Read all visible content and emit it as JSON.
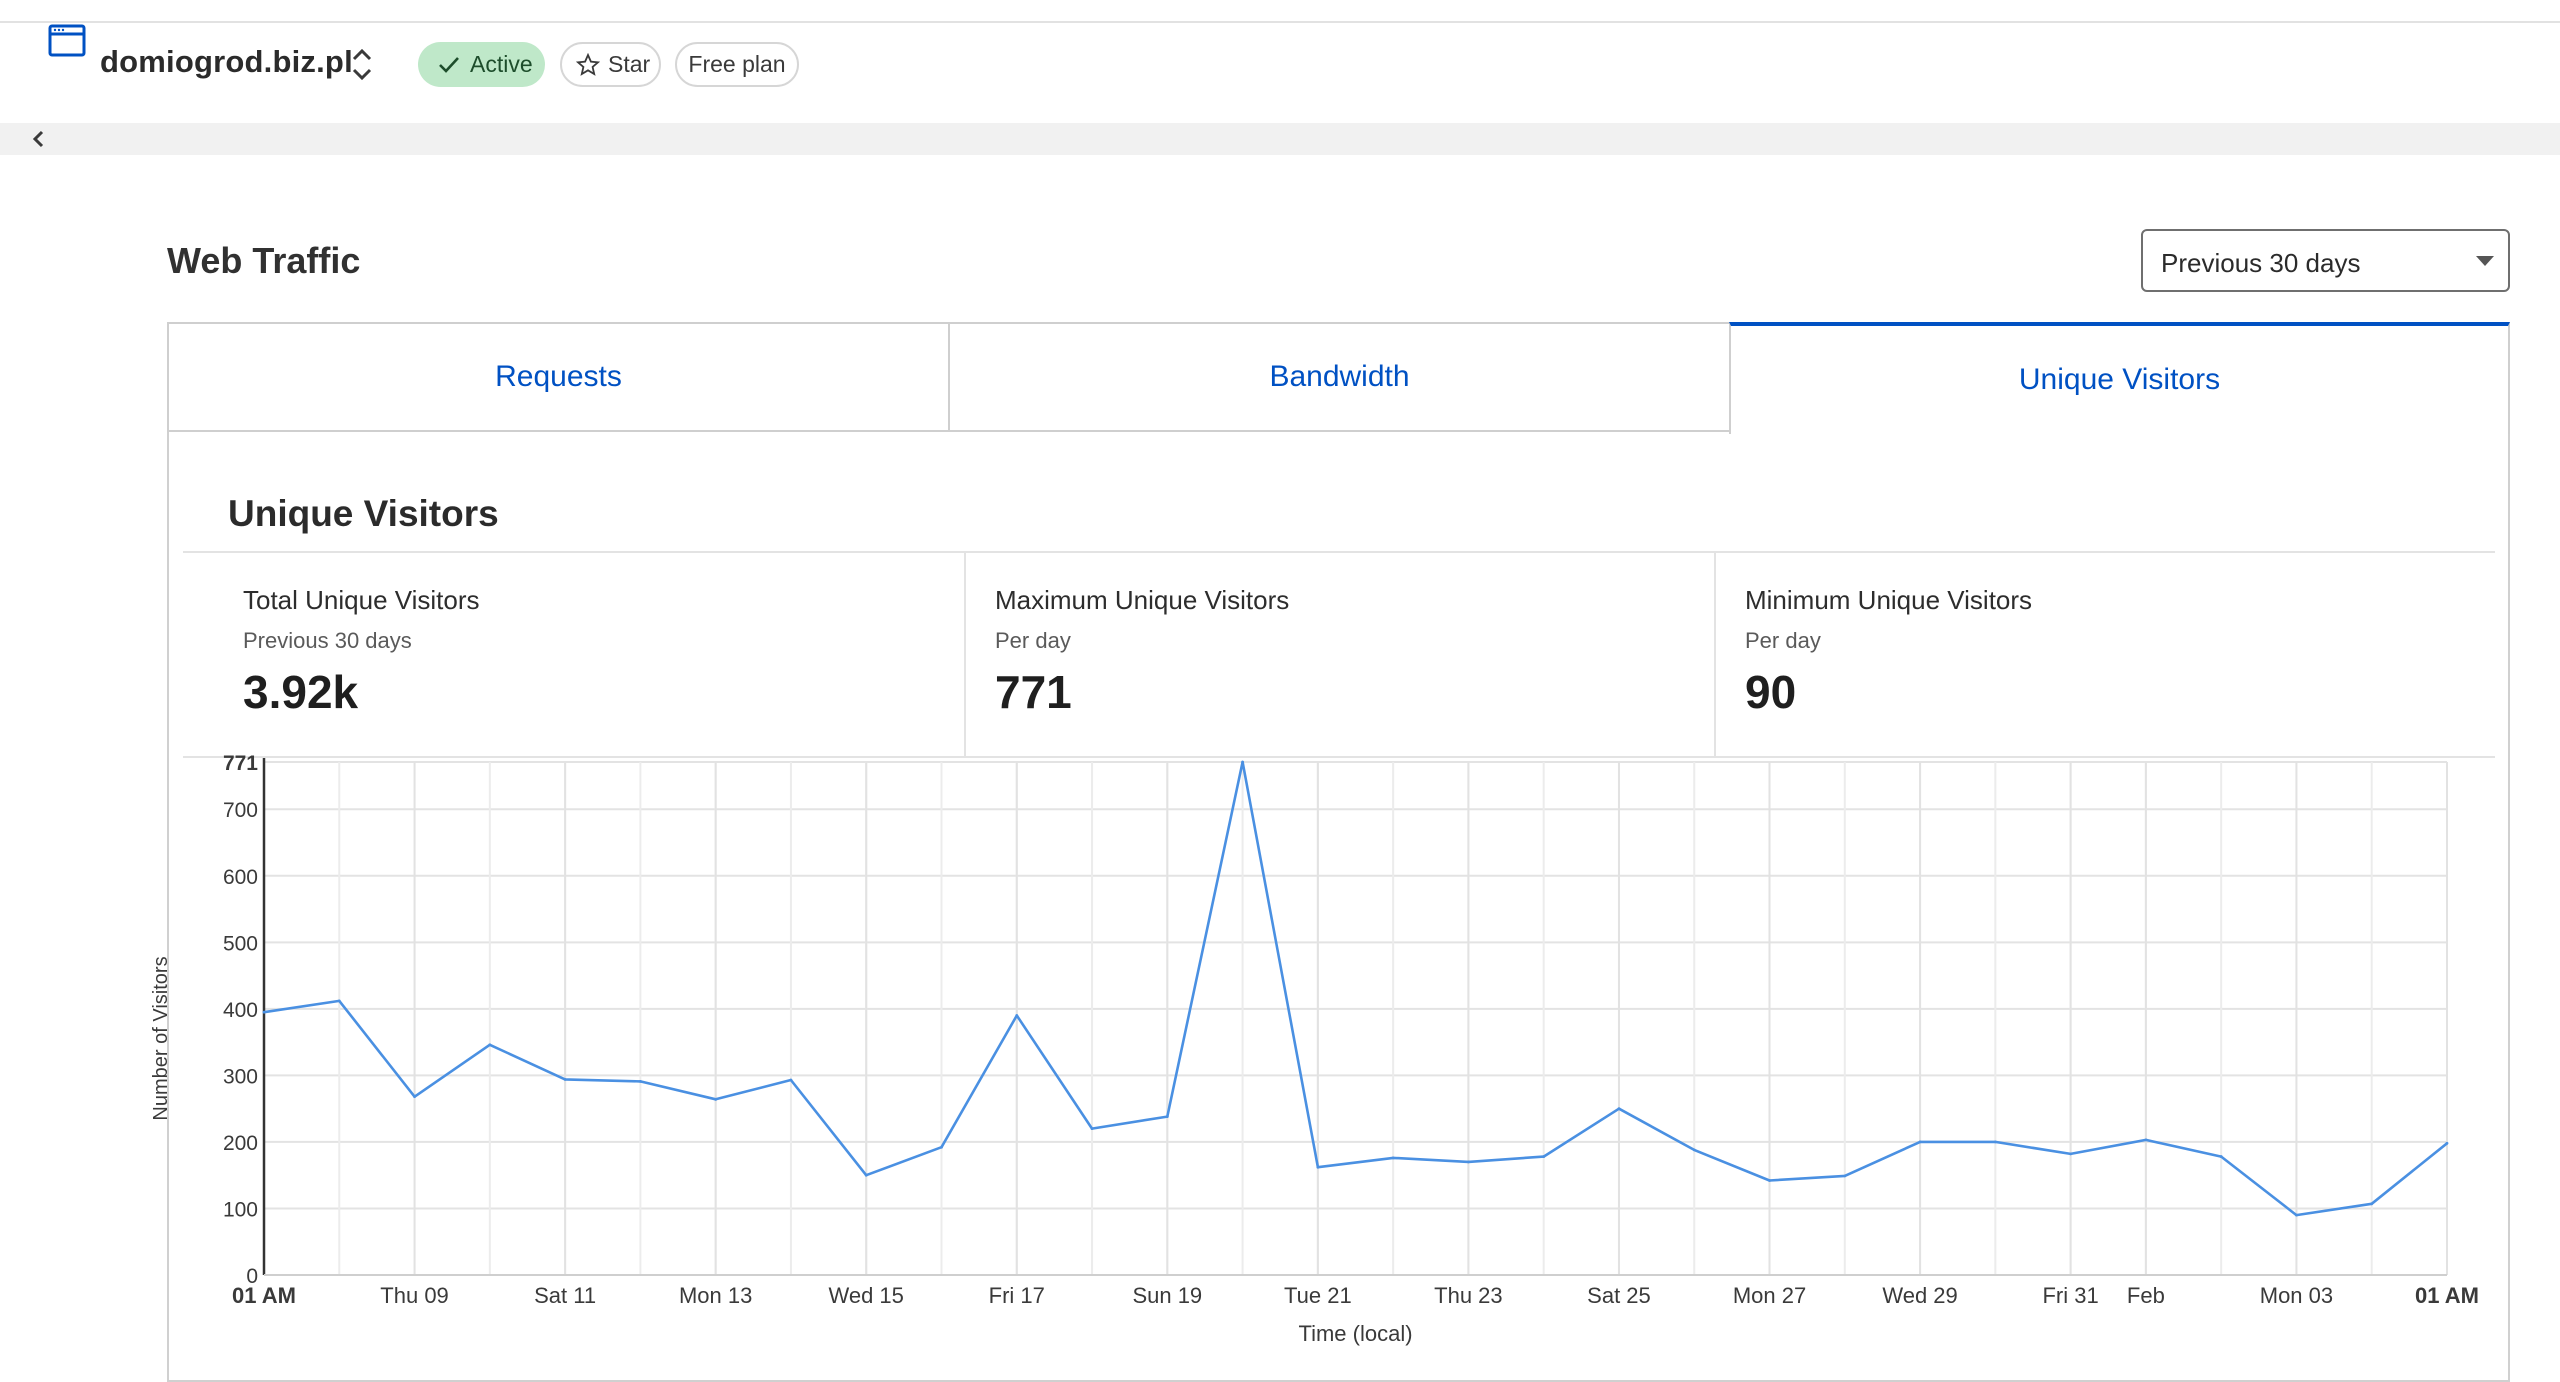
{
  "header": {
    "zone_name": "domiogrod.biz.pl",
    "status_label": "Active",
    "star_label": "Star",
    "plan_label": "Free plan"
  },
  "section": {
    "title": "Web Traffic",
    "range_value": "Previous 30 days"
  },
  "tabs": [
    {
      "label": "Requests",
      "active": false
    },
    {
      "label": "Bandwidth",
      "active": false
    },
    {
      "label": "Unique Visitors",
      "active": true
    }
  ],
  "panel": {
    "title": "Unique Visitors",
    "stats": [
      {
        "label": "Total Unique Visitors",
        "sub": "Previous 30 days",
        "value": "3.92k"
      },
      {
        "label": "Maximum Unique Visitors",
        "sub": "Per day",
        "value": "771"
      },
      {
        "label": "Minimum Unique Visitors",
        "sub": "Per day",
        "value": "90"
      }
    ]
  },
  "colors": {
    "accent": "#0051c3",
    "line": "#4a90e2",
    "active_badge": "#bfe8c9"
  },
  "chart_data": {
    "type": "line",
    "xlabel": "Time (local)",
    "ylabel": "Number of Visitors",
    "ylim": [
      0,
      771
    ],
    "y_ticks": [
      0,
      100,
      200,
      300,
      400,
      500,
      600,
      700,
      771
    ],
    "x_ticks": [
      {
        "label": "01 AM",
        "pos": 0,
        "bold": true
      },
      {
        "label": "Thu 09",
        "pos": 2,
        "bold": false
      },
      {
        "label": "Sat 11",
        "pos": 4,
        "bold": false
      },
      {
        "label": "Mon 13",
        "pos": 6,
        "bold": false
      },
      {
        "label": "Wed 15",
        "pos": 8,
        "bold": false
      },
      {
        "label": "Fri 17",
        "pos": 10,
        "bold": false
      },
      {
        "label": "Sun 19",
        "pos": 12,
        "bold": false
      },
      {
        "label": "Tue 21",
        "pos": 14,
        "bold": false
      },
      {
        "label": "Thu 23",
        "pos": 16,
        "bold": false
      },
      {
        "label": "Sat 25",
        "pos": 18,
        "bold": false
      },
      {
        "label": "Mon 27",
        "pos": 20,
        "bold": false
      },
      {
        "label": "Wed 29",
        "pos": 22,
        "bold": false
      },
      {
        "label": "Fri 31",
        "pos": 24,
        "bold": false
      },
      {
        "label": "Feb",
        "pos": 25,
        "bold": false
      },
      {
        "label": "Mon 03",
        "pos": 27,
        "bold": false
      },
      {
        "label": "01 AM",
        "pos": 29,
        "bold": true
      }
    ],
    "grid": true,
    "series": [
      {
        "values": [
          395,
          412,
          268,
          346,
          294,
          291,
          264,
          293,
          150,
          192,
          390,
          220,
          238,
          771,
          162,
          176,
          170,
          178,
          250,
          188,
          142,
          149,
          200,
          200,
          182,
          203,
          178,
          90,
          107,
          198
        ]
      }
    ]
  }
}
